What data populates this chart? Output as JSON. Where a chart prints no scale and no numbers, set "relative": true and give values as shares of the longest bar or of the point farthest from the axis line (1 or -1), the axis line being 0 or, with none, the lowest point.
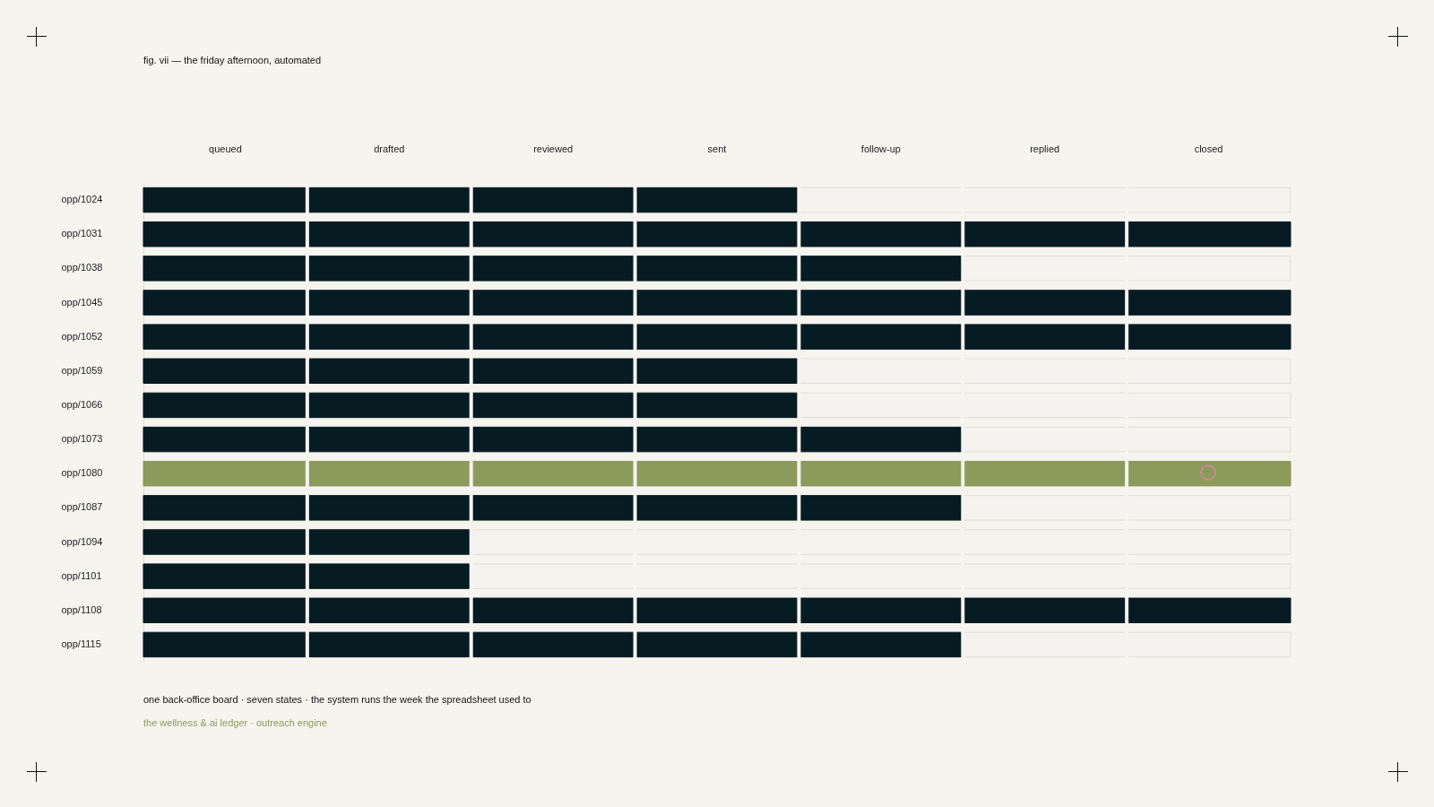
{
  "chart_data": {
    "type": "bar",
    "orientation": "horizontal",
    "stacked": true,
    "relative": true,
    "title": "fig. vii — the friday afternoon, automated",
    "categories": [
      "opp/1024",
      "opp/1031",
      "opp/1038",
      "opp/1045",
      "opp/1052",
      "opp/1059",
      "opp/1066",
      "opp/1073",
      "opp/1080",
      "opp/1087",
      "opp/1094",
      "opp/1101",
      "opp/1108",
      "opp/1115"
    ],
    "series": [
      {
        "values": [
          0.571,
          1,
          0.714,
          1,
          1,
          0.571,
          0.571,
          0.714,
          1,
          0.714,
          0.286,
          0.286,
          1,
          0.714
        ],
        "colors": [
          "#061b22",
          "#061b22",
          "#061b22",
          "#061b22",
          "#061b22",
          "#061b22",
          "#061b22",
          "#061b22",
          "#8c9a5b",
          "#061b22",
          "#061b22",
          "#061b22",
          "#061b22",
          "#061b22"
        ]
      },
      {
        "color": "#f4f3ef",
        "values": [
          0.429,
          null,
          0.286,
          null,
          null,
          0.429,
          0.429,
          0.286,
          null,
          0.286,
          0.714,
          0.714,
          null,
          0.286
        ]
      }
    ],
    "annotations": [
      "queued",
      "drafted",
      "reviewed",
      "sent",
      "follow-up",
      "replied",
      "closed",
      "one back-office board · seven states · the system runs the week the spreadsheet used to",
      "the wellness & ai ledger · outreach engine"
    ]
  }
}
